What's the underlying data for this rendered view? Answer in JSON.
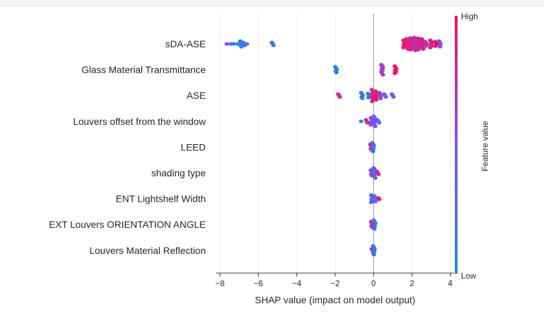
{
  "chart_data": {
    "type": "scatter",
    "subtype": "shap-beeswarm",
    "title": "",
    "xlabel": "SHAP value (impact on model output)",
    "xlim": [
      -8.2,
      4.2
    ],
    "xticks": [
      -8,
      -6,
      -4,
      -2,
      0,
      2,
      4
    ],
    "xtick_labels": [
      "−8",
      "−6",
      "−4",
      "−2",
      "0",
      "2",
      "4"
    ],
    "grid": true,
    "colorbar": {
      "label": "Feature value",
      "high_label": "High",
      "low_label": "Low",
      "low_color": "#1e88e5",
      "mid_color": "#7c52ff",
      "high_color": "#ff0d57"
    },
    "features": [
      {
        "name": "sDA-ASE",
        "points": [
          {
            "x": -7.6,
            "v": 0.6,
            "n": 1
          },
          {
            "x": -7.4,
            "v": 0.3,
            "n": 1
          },
          {
            "x": -7.25,
            "v": 0.2,
            "n": 1
          },
          {
            "x": -7.05,
            "v": 0.1,
            "n": 1
          },
          {
            "x": -6.9,
            "v": 0.08,
            "n": 5
          },
          {
            "x": -6.75,
            "v": 0.08,
            "n": 3
          },
          {
            "x": -6.55,
            "v": 0.4,
            "n": 1
          },
          {
            "x": -5.25,
            "v": 0.1,
            "n": 3
          },
          {
            "x": 1.6,
            "v": 0.95,
            "n": 6
          },
          {
            "x": 1.75,
            "v": 0.9,
            "n": 8
          },
          {
            "x": 1.95,
            "v": 0.85,
            "n": 9
          },
          {
            "x": 2.15,
            "v": 0.75,
            "n": 10
          },
          {
            "x": 2.35,
            "v": 0.8,
            "n": 9
          },
          {
            "x": 2.55,
            "v": 0.9,
            "n": 8
          },
          {
            "x": 2.75,
            "v": 0.7,
            "n": 4
          },
          {
            "x": 3.0,
            "v": 0.85,
            "n": 6
          },
          {
            "x": 3.25,
            "v": 1.0,
            "n": 4
          },
          {
            "x": 3.45,
            "v": 0.6,
            "n": 5
          }
        ]
      },
      {
        "name": "Glass Material Transmittance",
        "points": [
          {
            "x": -1.95,
            "v": 0.05,
            "n": 5
          },
          {
            "x": 0.45,
            "v": 0.65,
            "n": 8
          },
          {
            "x": 1.15,
            "v": 0.95,
            "n": 6
          }
        ]
      },
      {
        "name": "ASE",
        "points": [
          {
            "x": -1.8,
            "v": 0.8,
            "n": 3
          },
          {
            "x": -0.6,
            "v": 0.1,
            "n": 5
          },
          {
            "x": -0.25,
            "v": 0.1,
            "n": 4
          },
          {
            "x": -0.05,
            "v": 0.85,
            "n": 9
          },
          {
            "x": 0.15,
            "v": 0.9,
            "n": 7
          },
          {
            "x": 0.35,
            "v": 0.6,
            "n": 5
          },
          {
            "x": 0.6,
            "v": 0.5,
            "n": 3
          },
          {
            "x": 1.0,
            "v": 0.3,
            "n": 3
          }
        ]
      },
      {
        "name": "Louvers offset from the window",
        "points": [
          {
            "x": -0.6,
            "v": 0.1,
            "n": 1
          },
          {
            "x": -0.35,
            "v": 0.8,
            "n": 3
          },
          {
            "x": -0.1,
            "v": 0.55,
            "n": 6
          },
          {
            "x": 0.05,
            "v": 0.45,
            "n": 8
          },
          {
            "x": 0.25,
            "v": 0.35,
            "n": 3
          }
        ]
      },
      {
        "name": "LEED",
        "points": [
          {
            "x": -0.12,
            "v": 0.9,
            "n": 5
          },
          {
            "x": -0.02,
            "v": 0.2,
            "n": 7
          }
        ]
      },
      {
        "name": "shading type",
        "points": [
          {
            "x": -0.1,
            "v": 0.6,
            "n": 5
          },
          {
            "x": 0.05,
            "v": 0.3,
            "n": 8
          },
          {
            "x": 0.22,
            "v": 0.8,
            "n": 3
          }
        ]
      },
      {
        "name": "ENT Lightshelf Width",
        "points": [
          {
            "x": -0.08,
            "v": 0.2,
            "n": 6
          },
          {
            "x": 0.08,
            "v": 0.4,
            "n": 5
          },
          {
            "x": 0.3,
            "v": 0.95,
            "n": 2
          }
        ]
      },
      {
        "name": "EXT Louvers ORIENTATION ANGLE",
        "points": [
          {
            "x": -0.08,
            "v": 0.9,
            "n": 5
          },
          {
            "x": 0.05,
            "v": 0.15,
            "n": 7
          }
        ]
      },
      {
        "name": "Louvers Material Reflection",
        "points": [
          {
            "x": -0.05,
            "v": 0.85,
            "n": 3
          },
          {
            "x": 0.02,
            "v": 0.15,
            "n": 7
          }
        ]
      }
    ]
  }
}
